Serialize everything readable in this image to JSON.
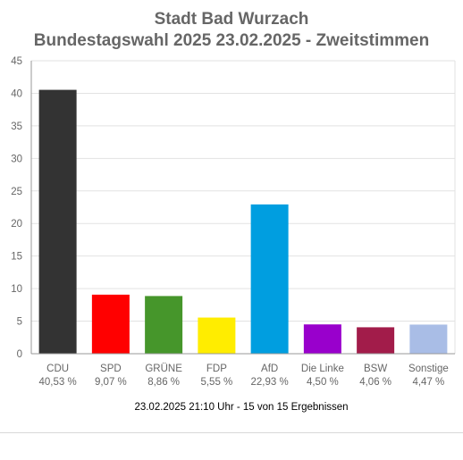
{
  "chart_data": {
    "type": "bar",
    "title": [
      "Stadt Bad Wurzach",
      "Bundestagswahl 2025 23.02.2025  - Zweitstimmen"
    ],
    "categories": [
      "CDU",
      "SPD",
      "GRÜNE",
      "FDP",
      "AfD",
      "Die Linke",
      "BSW",
      "Sonstige"
    ],
    "percent_labels": [
      "40,53 %",
      "9,07 %",
      "8,86 %",
      "5,55 %",
      "22,93 %",
      "4,50 %",
      "4,06 %",
      "4,47 %"
    ],
    "values": [
      40.53,
      9.07,
      8.86,
      5.55,
      22.93,
      4.5,
      4.06,
      4.47
    ],
    "colors": [
      "#333333",
      "#ff0000",
      "#46962b",
      "#ffed00",
      "#009ee0",
      "#9900cc",
      "#a21c4a",
      "#a9bde6"
    ],
    "ylim": [
      0,
      45
    ],
    "yticks": [
      "0",
      "5",
      "10",
      "15",
      "20",
      "25",
      "30",
      "35",
      "40",
      "45"
    ],
    "grid": true,
    "footnote": "23.02.2025 21:10 Uhr - 15 von 15 Ergebnissen"
  }
}
